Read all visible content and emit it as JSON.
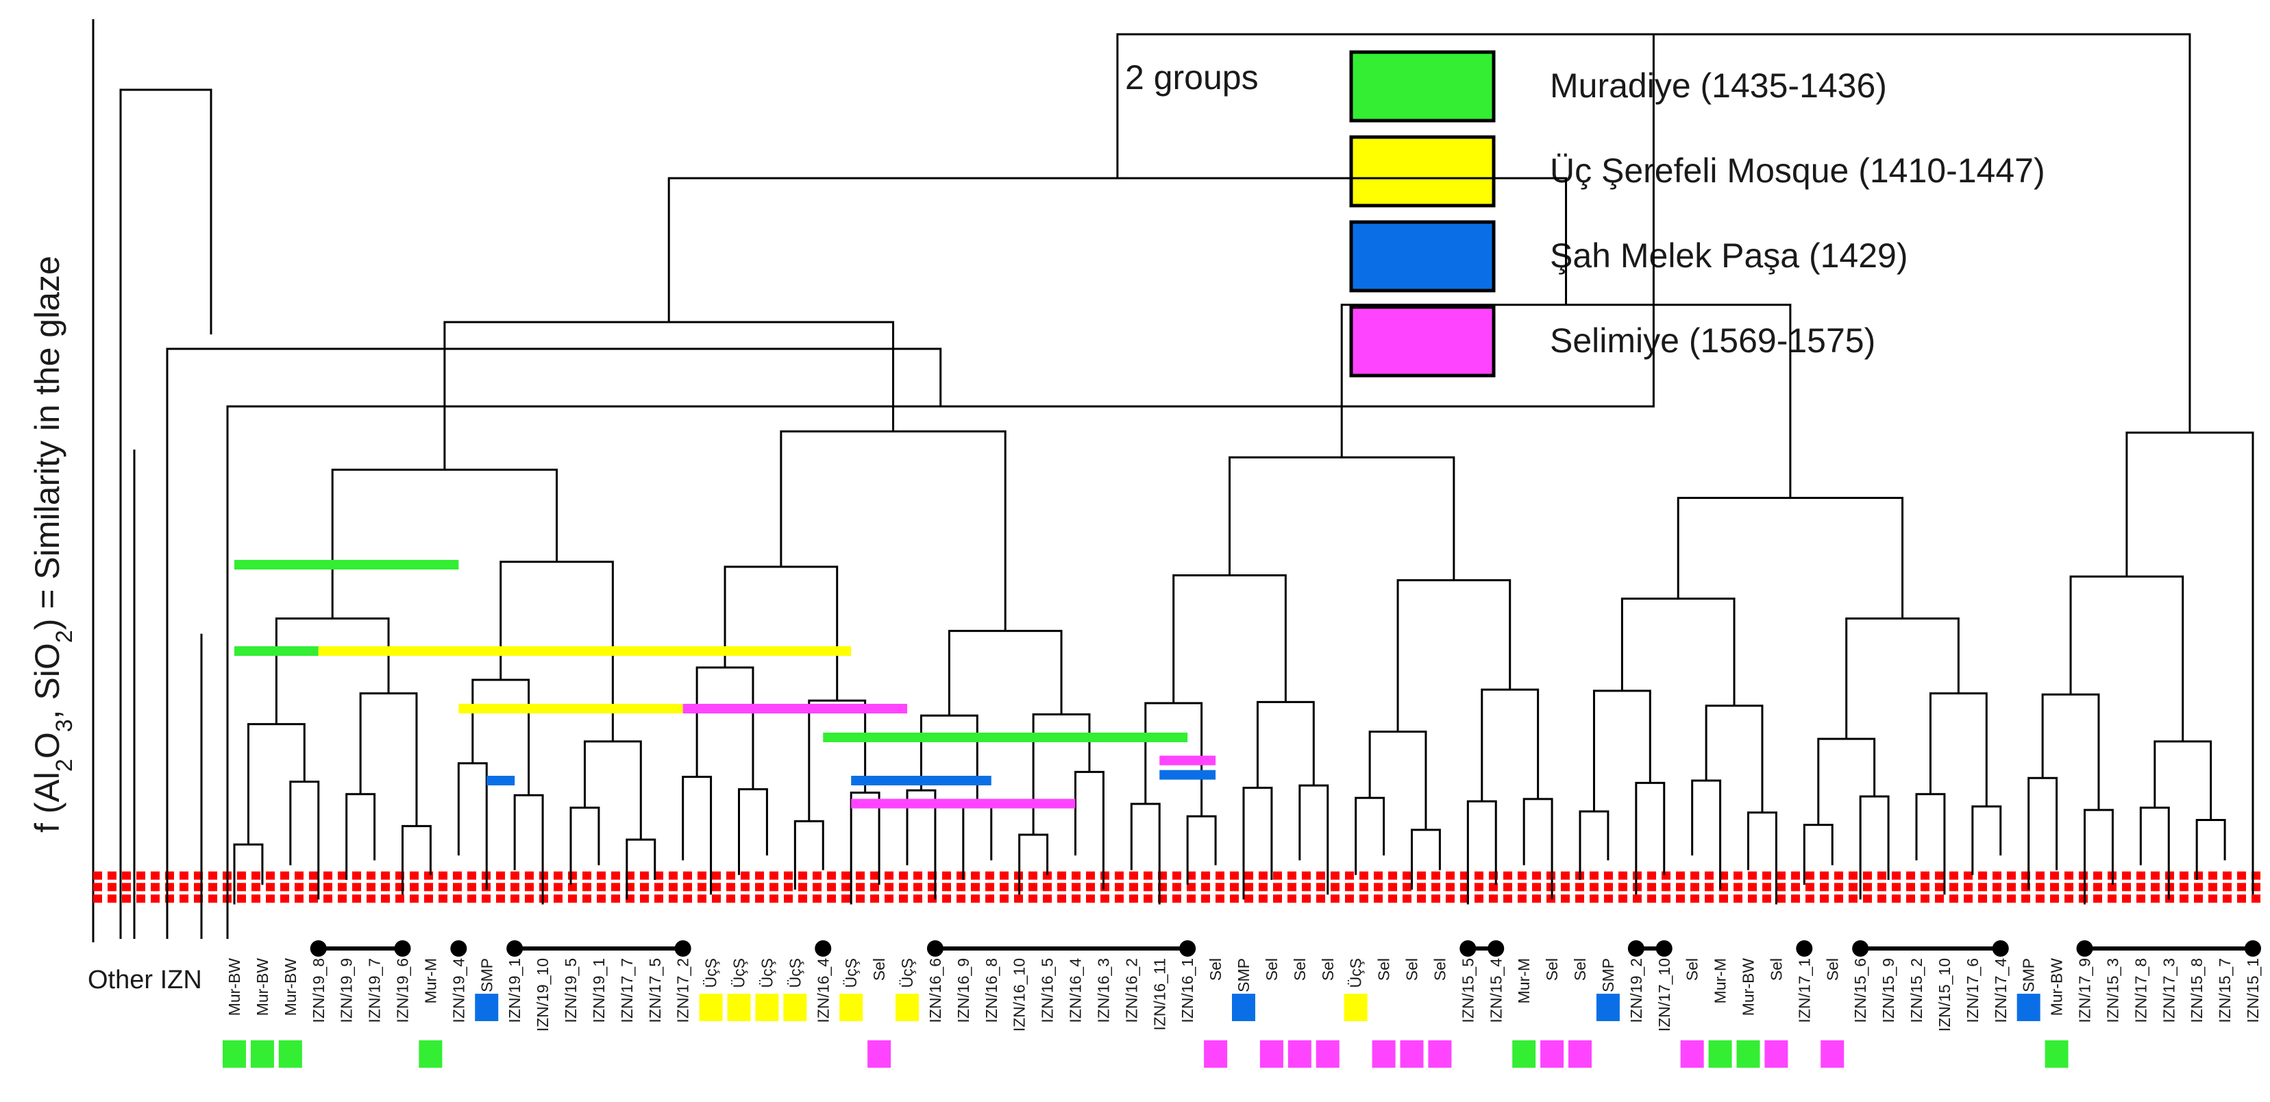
{
  "chart_data": {
    "type": "dendrogram",
    "title": "",
    "ylabel": "f (Al2O3, SiO2) = Similarity in the glaze",
    "ylabel_parts": {
      "pre": "f (Al",
      "s1": "2",
      "mid": "O",
      "s2": "3",
      "mid2": ",  SiO",
      "s3": "2",
      "post": ") = Similarity in the glaze"
    },
    "xlabel": "",
    "other_label": "Other IZN",
    "groups_label": "2 groups",
    "legend": [
      {
        "label": "Muradiye (1435-1436)",
        "color": "#33ee33"
      },
      {
        "label": "Üç Şerefeli Mosque (1410-1447)",
        "color": "#ffff00"
      },
      {
        "label": "Şah Melek Paşa (1429)",
        "color": "#0a6fe6"
      },
      {
        "label": "Selimiye (1569-1575)",
        "color": "#ff44ff"
      }
    ],
    "group_colors": {
      "M": "#33ee33",
      "U": "#ffff00",
      "S": "#0a6fe6",
      "P": "#ff44ff"
    },
    "leaves": [
      {
        "label": "Mur-BW",
        "g": "M",
        "row": 2
      },
      {
        "label": "Mur-BW",
        "g": "M",
        "row": 2
      },
      {
        "label": "Mur-BW",
        "g": "M",
        "row": 2
      },
      {
        "label": "IZN/19_8"
      },
      {
        "label": "IZN/19_9"
      },
      {
        "label": "IZN/19_7"
      },
      {
        "label": "IZN/19_6"
      },
      {
        "label": "Mur-M",
        "g": "M",
        "row": 2
      },
      {
        "label": "IZN/19_4"
      },
      {
        "label": "SMP",
        "g": "S",
        "row": 1
      },
      {
        "label": "IZN/19_1"
      },
      {
        "label": "IZN/19_10"
      },
      {
        "label": "IZN/19_5"
      },
      {
        "label": "IZN/19_1"
      },
      {
        "label": "IZN/17_7"
      },
      {
        "label": "IZN/17_5"
      },
      {
        "label": "IZN/17_2"
      },
      {
        "label": "ÜçŞ",
        "g": "U",
        "row": 1
      },
      {
        "label": "ÜçŞ",
        "g": "U",
        "row": 1
      },
      {
        "label": "ÜçŞ",
        "g": "U",
        "row": 1
      },
      {
        "label": "ÜçŞ",
        "g": "U",
        "row": 1
      },
      {
        "label": "IZN/16_4"
      },
      {
        "label": "ÜçŞ",
        "g": "U",
        "row": 1
      },
      {
        "label": "Sel",
        "g": "P",
        "row": 2
      },
      {
        "label": "ÜçŞ",
        "g": "U",
        "row": 1
      },
      {
        "label": "IZN/16_6"
      },
      {
        "label": "IZN/16_9"
      },
      {
        "label": "IZN/16_8"
      },
      {
        "label": "IZN/16_10"
      },
      {
        "label": "IZN/16_5"
      },
      {
        "label": "IZN/16_4"
      },
      {
        "label": "IZN/16_3"
      },
      {
        "label": "IZN/16_2"
      },
      {
        "label": "IZN/16_11"
      },
      {
        "label": "IZN/16_1"
      },
      {
        "label": "Sel",
        "g": "P",
        "row": 2
      },
      {
        "label": "SMP",
        "g": "S",
        "row": 1
      },
      {
        "label": "Sel",
        "g": "P",
        "row": 2
      },
      {
        "label": "Sel",
        "g": "P",
        "row": 2
      },
      {
        "label": "Sel",
        "g": "P",
        "row": 2
      },
      {
        "label": "ÜçŞ",
        "g": "U",
        "row": 1
      },
      {
        "label": "Sel",
        "g": "P",
        "row": 2
      },
      {
        "label": "Sel",
        "g": "P",
        "row": 2
      },
      {
        "label": "Sel",
        "g": "P",
        "row": 2
      },
      {
        "label": "IZN/15_5"
      },
      {
        "label": "IZN/15_4"
      },
      {
        "label": "Mur-M",
        "g": "M",
        "row": 2
      },
      {
        "label": "Sel",
        "g": "P",
        "row": 2
      },
      {
        "label": "Sel",
        "g": "P",
        "row": 2
      },
      {
        "label": "SMP",
        "g": "S",
        "row": 1
      },
      {
        "label": "IZN/19_2"
      },
      {
        "label": "IZN/17_10"
      },
      {
        "label": "Sel",
        "g": "P",
        "row": 2
      },
      {
        "label": "Mur-M",
        "g": "M",
        "row": 2
      },
      {
        "label": "Mur-BW",
        "g": "M",
        "row": 2
      },
      {
        "label": "Sel",
        "g": "P",
        "row": 2
      },
      {
        "label": "IZN/17_1"
      },
      {
        "label": "Sel",
        "g": "P",
        "row": 2
      },
      {
        "label": "IZN/15_6"
      },
      {
        "label": "IZN/15_9"
      },
      {
        "label": "IZN/15_2"
      },
      {
        "label": "IZN/15_10"
      },
      {
        "label": "IZN/17_6"
      },
      {
        "label": "IZN/17_4"
      },
      {
        "label": "SMP",
        "g": "S",
        "row": 1
      },
      {
        "label": "Mur-BW",
        "g": "M",
        "row": 2
      },
      {
        "label": "IZN/17_9"
      },
      {
        "label": "IZN/15_3"
      },
      {
        "label": "IZN/17_8"
      },
      {
        "label": "IZN/17_3"
      },
      {
        "label": "IZN/15_8"
      },
      {
        "label": "IZN/15_7"
      },
      {
        "label": "IZN/15_1"
      }
    ],
    "cluster_bars": [
      {
        "group": "M",
        "from": 0,
        "to": 8,
        "height": 0.58
      },
      {
        "group": "M",
        "from": 0,
        "to": 3,
        "height": 0.55
      },
      {
        "group": "U",
        "from": 3,
        "to": 22,
        "height": 0.55
      },
      {
        "group": "U",
        "from": 8,
        "to": 16,
        "height": 0.53
      },
      {
        "group": "P",
        "from": 16,
        "to": 24,
        "height": 0.53
      },
      {
        "group": "M",
        "from": 21,
        "to": 34,
        "height": 0.52
      },
      {
        "group": "S",
        "from": 9,
        "to": 10,
        "height": 0.505
      },
      {
        "group": "S",
        "from": 22,
        "to": 27,
        "height": 0.505
      },
      {
        "group": "P",
        "from": 22,
        "to": 30,
        "height": 0.497
      },
      {
        "group": "P",
        "from": 33,
        "to": 35,
        "height": 0.512
      },
      {
        "group": "S",
        "from": 33,
        "to": 35,
        "height": 0.507
      }
    ],
    "cutoff_lines": [
      0.464,
      0.468,
      0.472
    ],
    "ylim": [
      0.45,
      0.75
    ]
  }
}
